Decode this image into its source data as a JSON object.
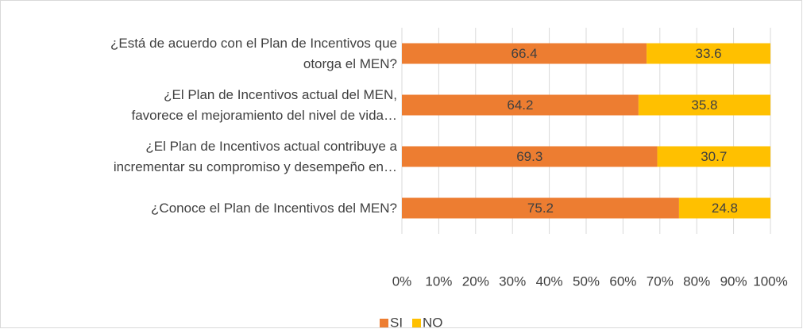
{
  "chart_data": {
    "type": "stacked_barh",
    "categories": [
      "¿Está de acuerdo con el Plan de Incentivos que\notorga el MEN?",
      "¿El Plan de Incentivos actual del MEN,\nfavorece el mejoramiento del nivel de vida…",
      "¿El Plan de Incentivos actual contribuye a\nincrementar su compromiso y desempeño en…",
      "¿Conoce el Plan de Incentivos del MEN?"
    ],
    "series": [
      {
        "name": "SI",
        "color": "#ed7d31",
        "values": [
          66.4,
          64.2,
          69.3,
          75.2
        ]
      },
      {
        "name": "NO",
        "color": "#ffc000",
        "values": [
          33.6,
          35.8,
          30.7,
          24.8
        ]
      }
    ],
    "xlim": [
      0,
      100
    ],
    "xticks": [
      {
        "value": 0,
        "label": "0%"
      },
      {
        "value": 10,
        "label": "10%"
      },
      {
        "value": 20,
        "label": "20%"
      },
      {
        "value": 30,
        "label": "30%"
      },
      {
        "value": 40,
        "label": "40%"
      },
      {
        "value": 50,
        "label": "50%"
      },
      {
        "value": 60,
        "label": "60%"
      },
      {
        "value": 70,
        "label": "70%"
      },
      {
        "value": 80,
        "label": "80%"
      },
      {
        "value": 90,
        "label": "90%"
      },
      {
        "value": 100,
        "label": "100%"
      }
    ],
    "grid": true,
    "legend": "bottom"
  }
}
